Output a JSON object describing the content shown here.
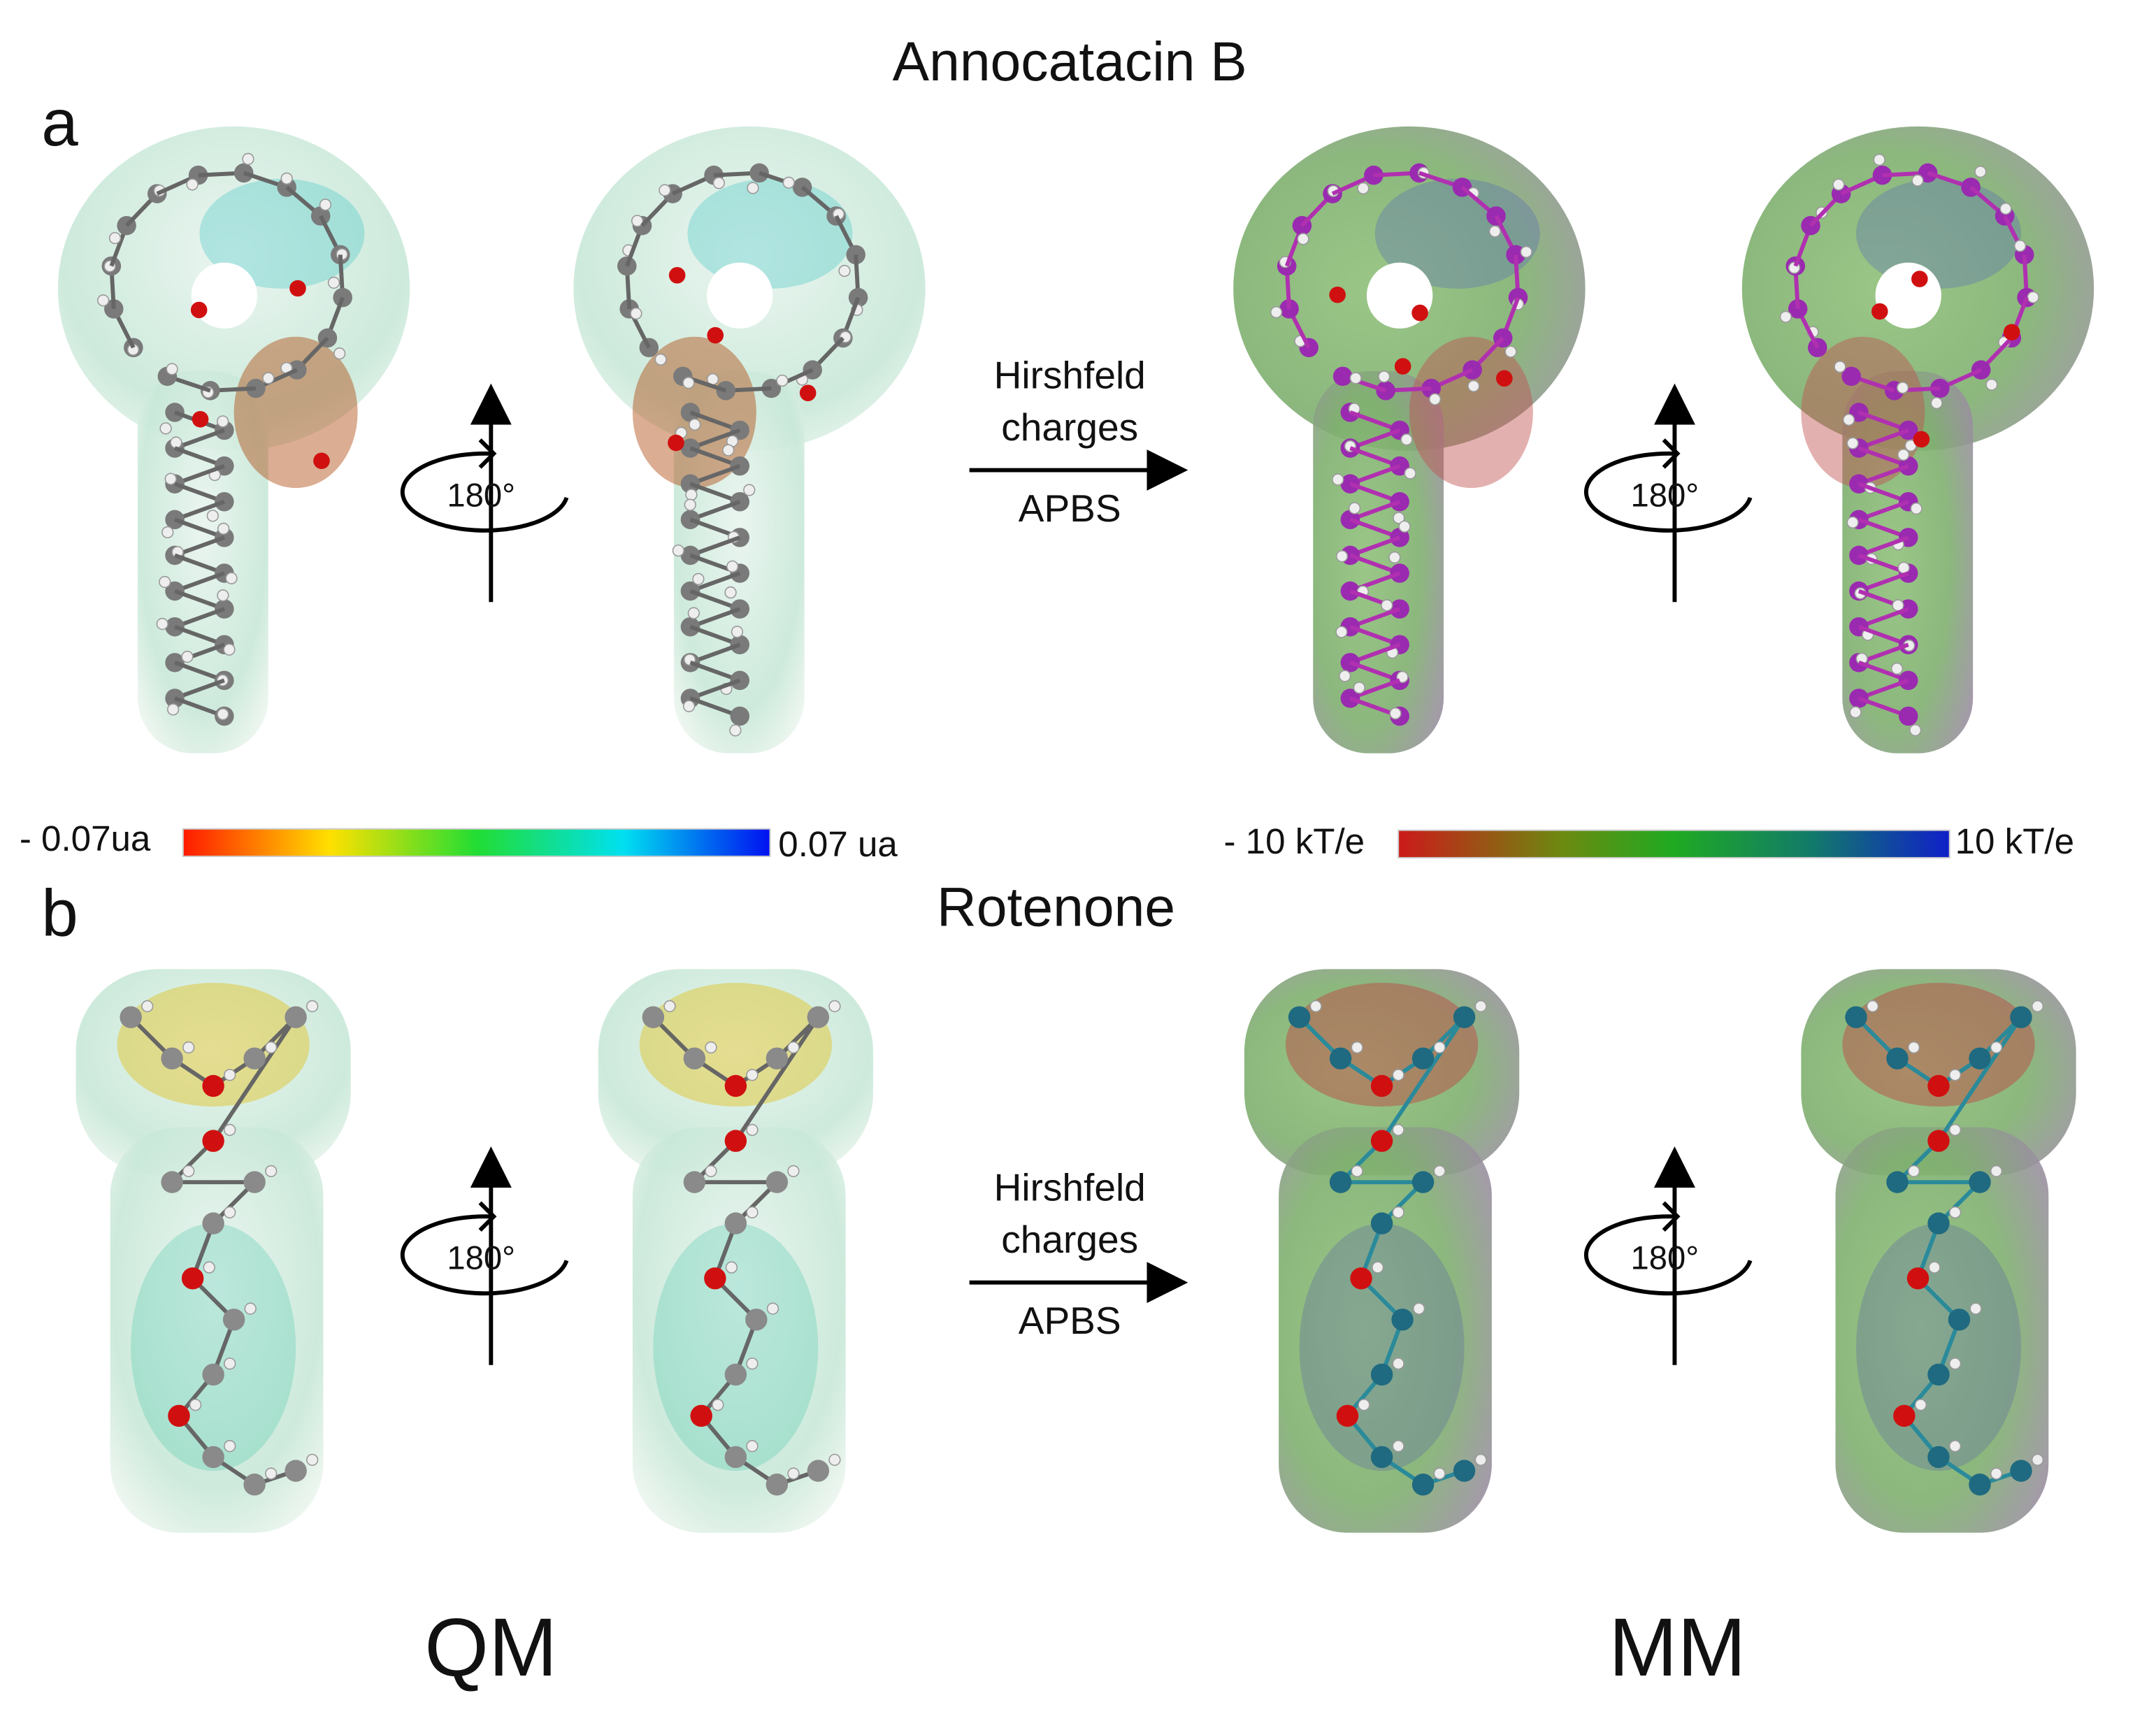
{
  "panels": [
    {
      "label": "a",
      "title": "Annocatacin B",
      "rotation_left": "180°",
      "rotation_right": "180°",
      "arrow": {
        "top_lines": [
          "Hirshfeld",
          "charges"
        ],
        "bottom": "APBS"
      }
    },
    {
      "label": "b",
      "title": "Rotenone",
      "rotation_left": "180°",
      "rotation_right": "180°",
      "arrow": {
        "top_lines": [
          "Hirshfeld",
          "charges"
        ],
        "bottom": "APBS"
      }
    }
  ],
  "colorbars": [
    {
      "min_label": "- 0.07ua",
      "max_label": "0.07 ua"
    },
    {
      "min_label": "- 10 kT/e",
      "max_label": "10 kT/e"
    }
  ],
  "footer": {
    "left": "QM",
    "right": "MM"
  }
}
